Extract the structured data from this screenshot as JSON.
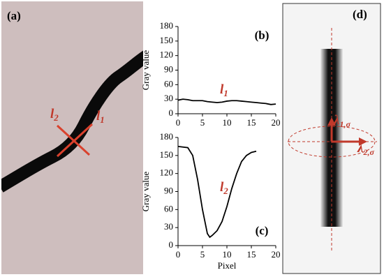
{
  "panels": {
    "a": {
      "label": "(a)",
      "line_1": {
        "symbol": "l",
        "subscript": "1"
      },
      "line_2": {
        "symbol": "l",
        "subscript": "2"
      }
    },
    "d": {
      "label": "(d)",
      "lambda_1": {
        "symbol": "λ",
        "subscript": "1,σ"
      },
      "lambda_2": {
        "symbol": "λ",
        "subscript": "2,σ"
      }
    }
  },
  "chart_data": [
    {
      "type": "line",
      "panel_label": "(b)",
      "y_label": "Gray value",
      "annotation": {
        "symbol": "l",
        "subscript": "1"
      },
      "color": "#000000",
      "x": [
        0,
        1,
        2,
        3,
        4,
        5,
        6,
        7,
        8,
        9,
        10,
        11,
        12,
        13,
        14,
        15,
        16,
        17,
        18,
        19,
        20
      ],
      "values": [
        28,
        30,
        29,
        27,
        27,
        27,
        25,
        24,
        23,
        24,
        26,
        27,
        27,
        26,
        25,
        24,
        23,
        22,
        21,
        19,
        20
      ],
      "xlim": [
        0,
        20
      ],
      "xticks": [
        0,
        5,
        10,
        15,
        20
      ],
      "ylim": [
        0,
        180
      ],
      "yticks": [
        0,
        30,
        60,
        90,
        120,
        150,
        180
      ]
    },
    {
      "type": "line",
      "panel_label": "(c)",
      "y_label": "Gray value",
      "x_label": "Pixel",
      "annotation": {
        "symbol": "l",
        "subscript": "2"
      },
      "color": "#000000",
      "x": [
        0,
        1,
        2,
        3,
        4,
        5,
        6,
        6.5,
        7,
        8,
        9,
        10,
        11,
        12,
        13,
        14,
        15,
        16
      ],
      "values": [
        165,
        164,
        163,
        150,
        110,
        60,
        20,
        14,
        17,
        25,
        40,
        65,
        95,
        120,
        140,
        150,
        155,
        157
      ],
      "xlim": [
        0,
        20
      ],
      "xticks": [
        0,
        5,
        10,
        15,
        20
      ],
      "ylim": [
        0,
        180
      ],
      "yticks": [
        0,
        30,
        60,
        90,
        120,
        150,
        180
      ]
    }
  ]
}
